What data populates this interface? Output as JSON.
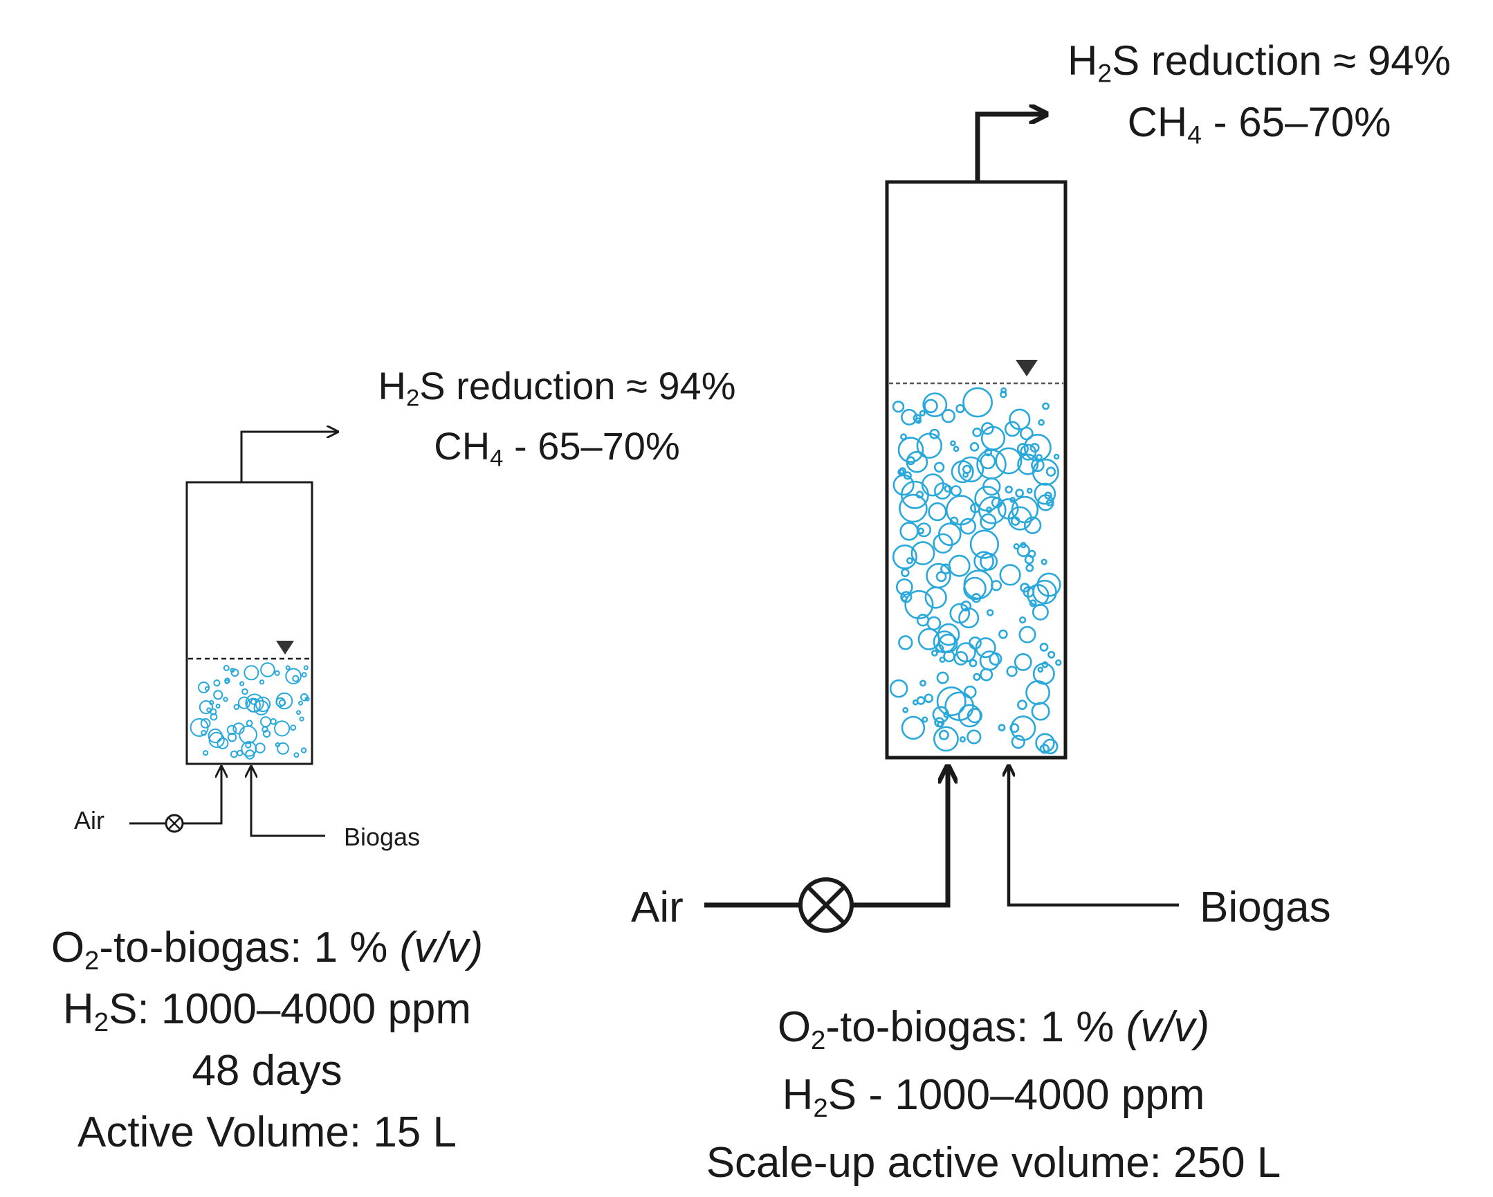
{
  "small_reactor": {
    "output": {
      "h2s_prefix": "H",
      "h2s_sub": "2",
      "h2s_suffix": "S reduction ≈ 94%",
      "ch4_prefix": "CH",
      "ch4_sub": "4",
      "ch4_suffix": " - 65–70%"
    },
    "inlets": {
      "air": "Air",
      "biogas": "Biogas"
    },
    "conditions": {
      "o2_prefix": "O",
      "o2_sub": "2",
      "o2_text": "-to-biogas: 1 % ",
      "o2_unit": "(v/v)",
      "h2s_prefix": "H",
      "h2s_sub": "2",
      "h2s_text": "S: 1000–4000 ppm",
      "duration": "48 days",
      "volume": "Active Volume: 15 L"
    }
  },
  "large_reactor": {
    "output": {
      "h2s_prefix": "H",
      "h2s_sub": "2",
      "h2s_suffix": "S reduction ≈ 94%",
      "ch4_prefix": "CH",
      "ch4_sub": "4",
      "ch4_suffix": " - 65–70%"
    },
    "inlets": {
      "air": "Air",
      "biogas": "Biogas"
    },
    "conditions": {
      "o2_prefix": "O",
      "o2_sub": "2",
      "o2_text": "-to-biogas: 1 % ",
      "o2_unit": "(v/v)",
      "h2s_prefix": "H",
      "h2s_sub": "2",
      "h2s_text": "S - 1000–4000 ppm",
      "volume": "Scale-up active volume: 250 L"
    }
  },
  "colors": {
    "line": "#1a1a1a",
    "bubble": "#29a8dc",
    "level": "#333333"
  },
  "icons": {
    "valve": "valve-icon",
    "level_marker": "liquid-level-triangle-icon",
    "flow_arrow": "arrow-icon"
  }
}
